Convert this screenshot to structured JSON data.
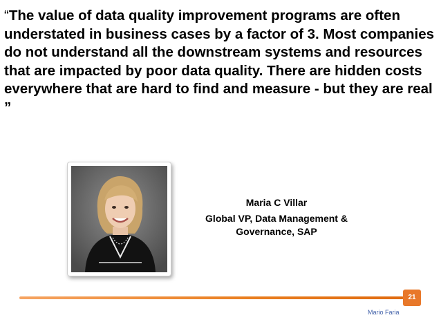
{
  "slide": {
    "quote": {
      "open_mark": "“",
      "text": "The value of data quality improvement programs are often understated in business cases by a factor of 3. Most companies do not understand all the downstream systems and resources that are impacted by poor data quality. There are hidden costs everywhere that are hard to find and measure - but they are real ”"
    },
    "photo": {
      "icon": "portrait-photo"
    },
    "speaker": {
      "name": "Maria C Villar",
      "title": "Global VP, Data Management & Governance, SAP"
    },
    "page_number": "21",
    "author": "Mario Faria"
  },
  "colors": {
    "accent": "#e8782a",
    "author_text": "#3f5fa8"
  }
}
